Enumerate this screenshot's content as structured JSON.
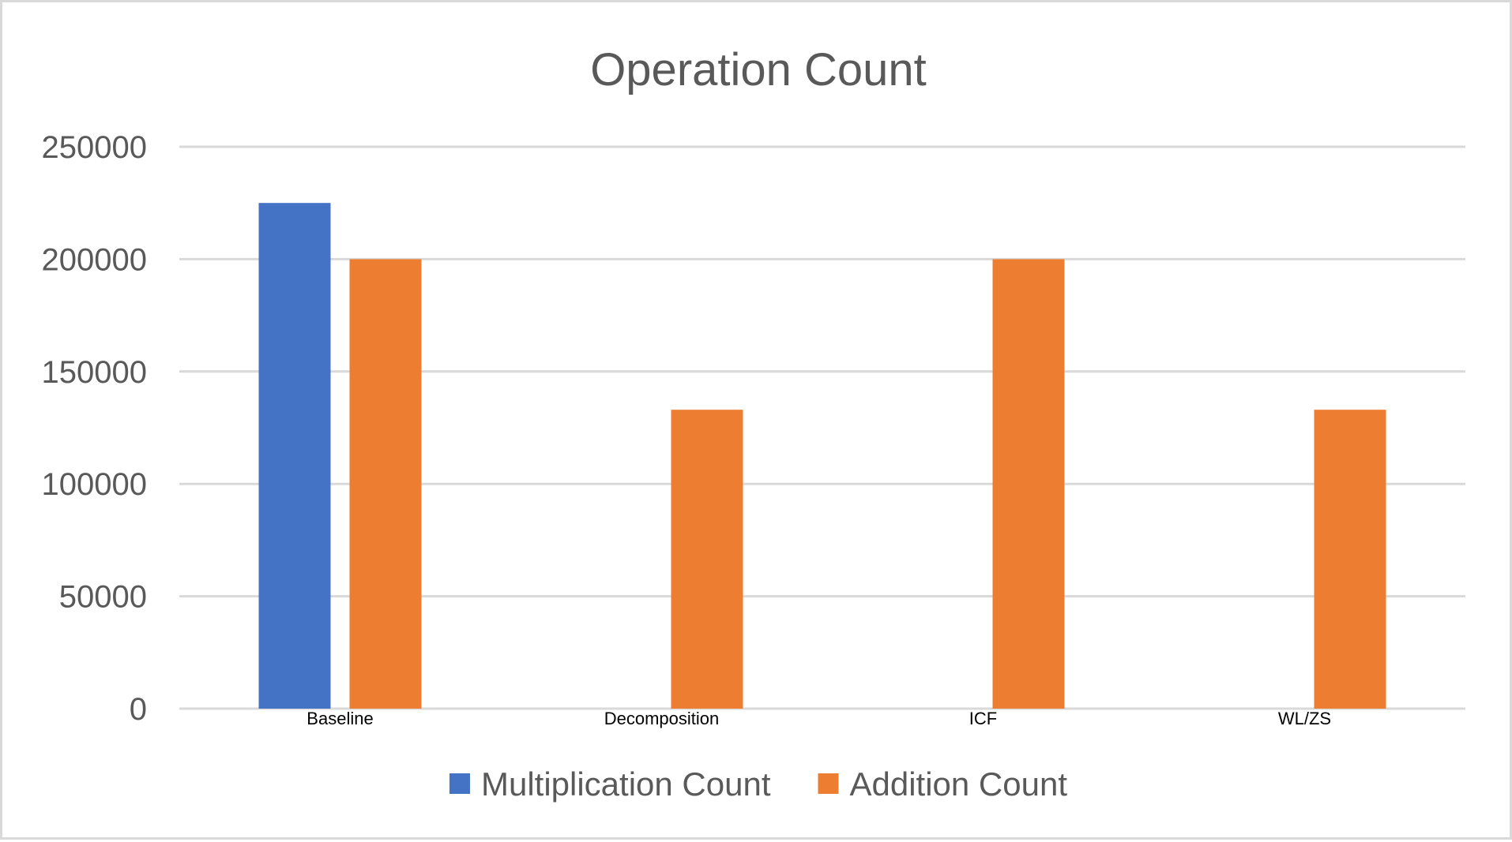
{
  "chart_data": {
    "type": "bar",
    "title": "Operation Count",
    "xlabel": "",
    "ylabel": "",
    "categories": [
      "Baseline",
      "Decomposition",
      "ICF",
      "WL/ZS"
    ],
    "series": [
      {
        "name": "Multiplication Count",
        "color": "#4472C4",
        "values": [
          225000,
          0,
          0,
          0
        ]
      },
      {
        "name": "Addition Count",
        "color": "#ED7D31",
        "values": [
          200000,
          133000,
          200000,
          133000
        ]
      }
    ],
    "ylim": [
      0,
      250000
    ],
    "yticks": [
      0,
      50000,
      100000,
      150000,
      200000,
      250000
    ],
    "grid": true,
    "legend_position": "bottom"
  }
}
